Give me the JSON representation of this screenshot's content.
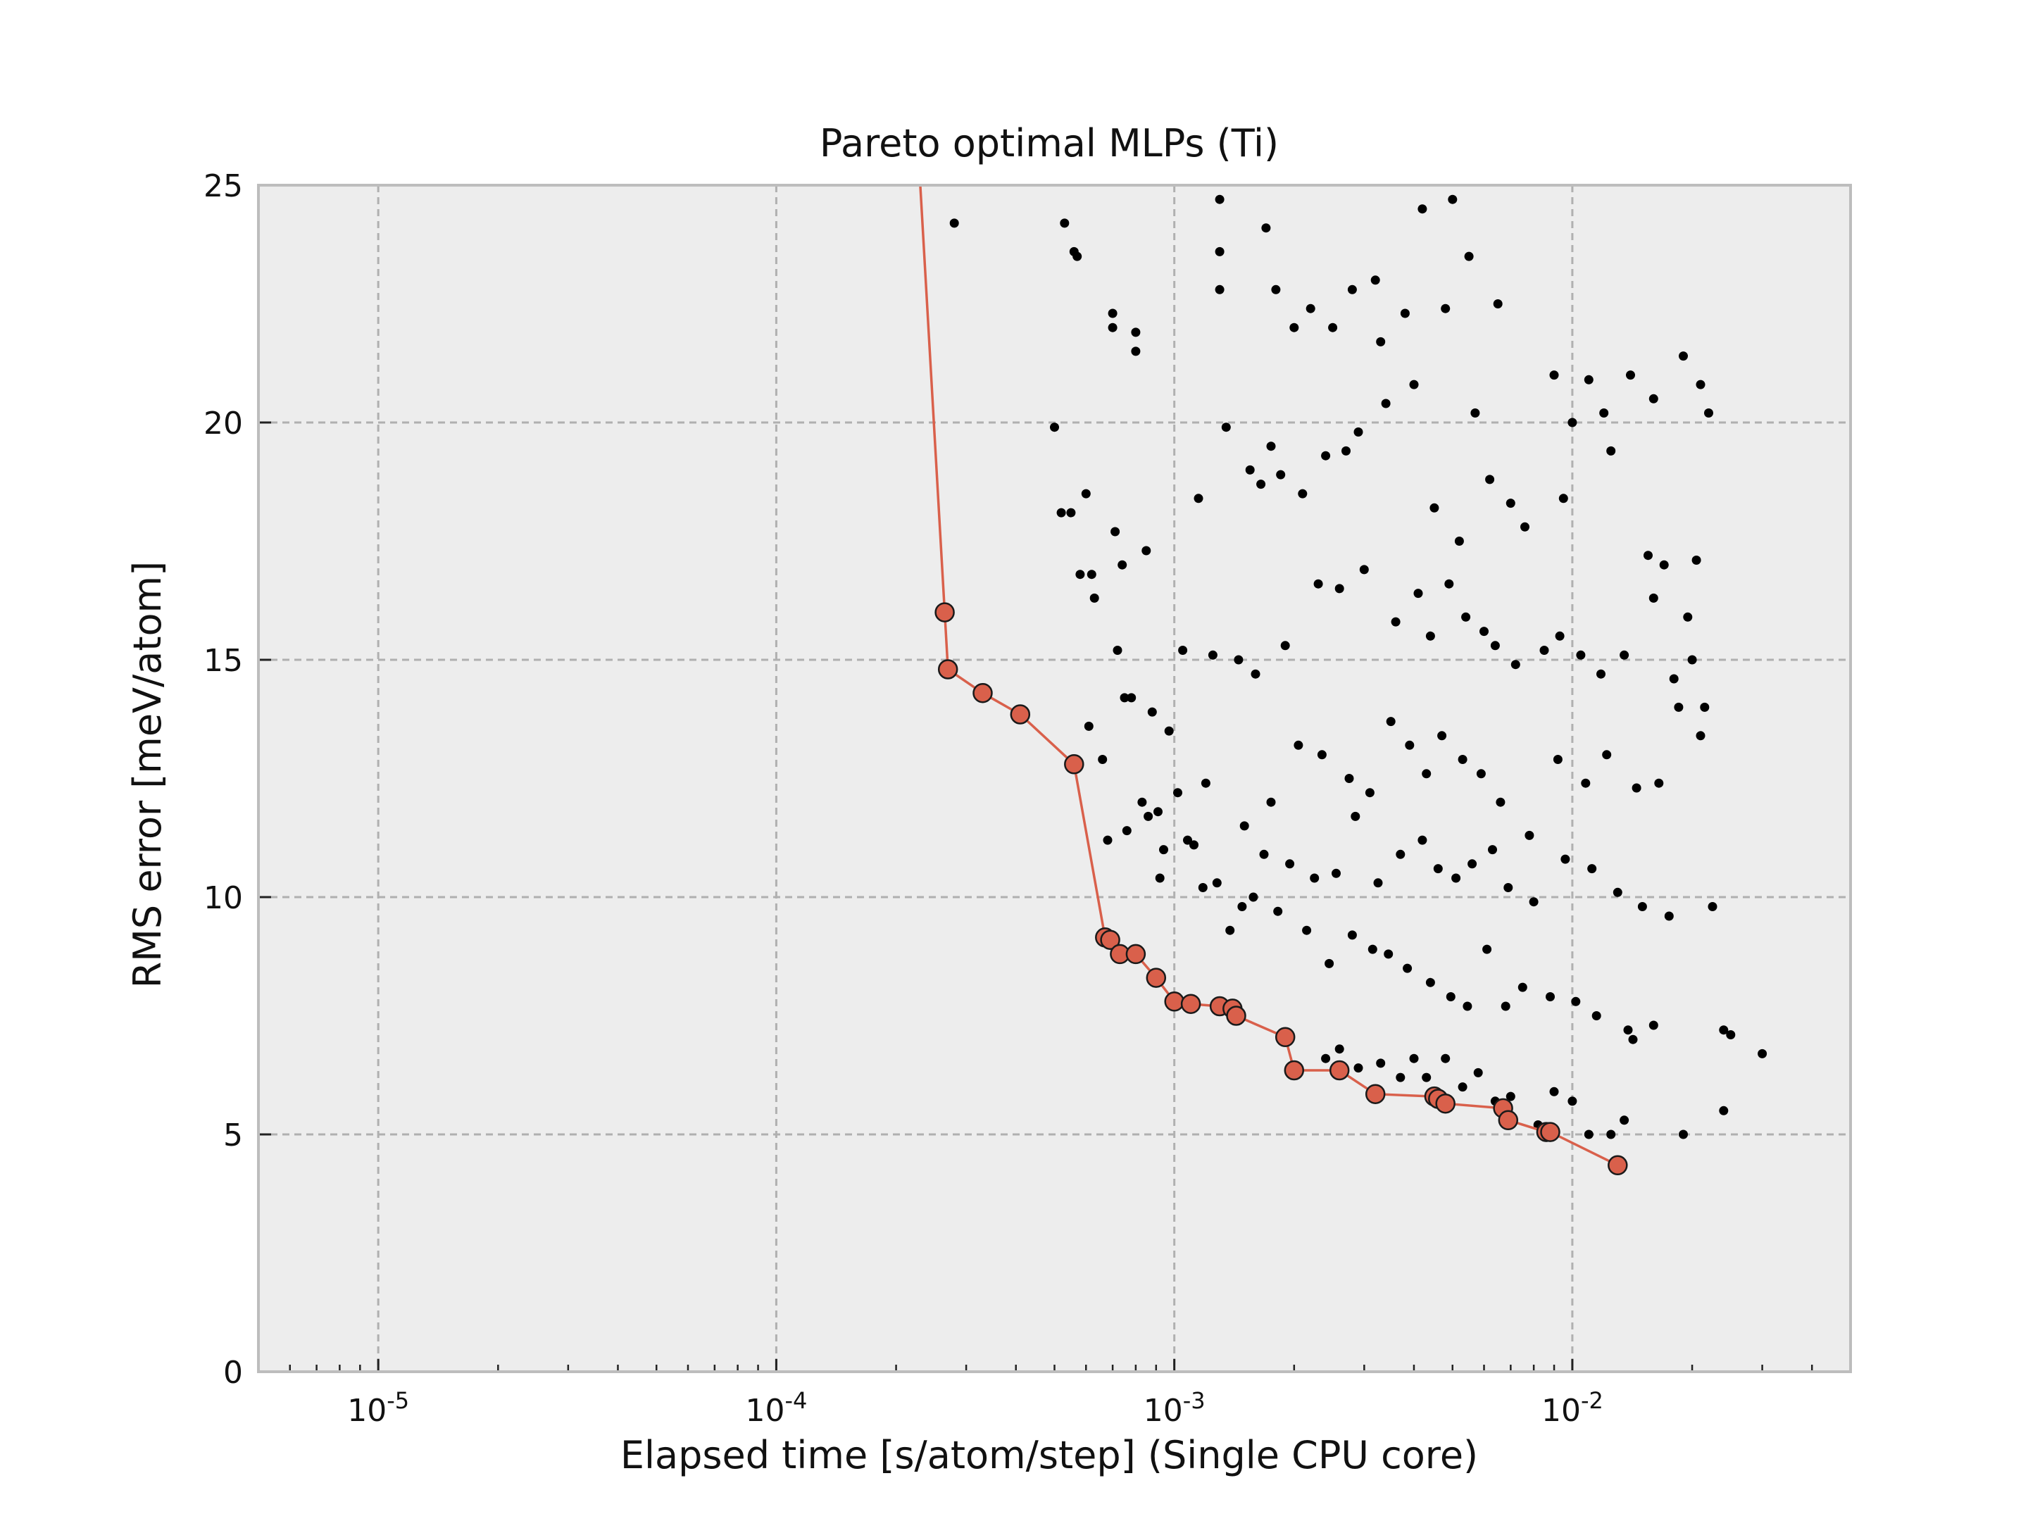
{
  "chart_data": {
    "type": "scatter",
    "title": "Pareto optimal MLPs (Ti)",
    "xlabel": "Elapsed time [s/atom/step] (Single CPU core)",
    "ylabel": "RMS error [meV/atom]",
    "xscale": "log",
    "xlim": [
      5e-06,
      0.05
    ],
    "ylim": [
      0,
      25
    ],
    "xticks": [
      1e-05,
      0.0001,
      0.001,
      0.01
    ],
    "xtick_labels": [
      {
        "base": "10",
        "exp": "-5"
      },
      {
        "base": "10",
        "exp": "-4"
      },
      {
        "base": "10",
        "exp": "-3"
      },
      {
        "base": "10",
        "exp": "-2"
      }
    ],
    "yticks": [
      0,
      5,
      10,
      15,
      20,
      25
    ],
    "ytick_labels": [
      "0",
      "5",
      "10",
      "15",
      "20",
      "25"
    ],
    "grid": true,
    "colors": {
      "background": "#ededed",
      "frame": "#bdbdbd",
      "grid": "#b0b0b0",
      "pareto": "#d9604b",
      "points": "#000000"
    },
    "pareto_front": {
      "x": [
        0.00023,
        0.000265,
        0.00027,
        0.00033,
        0.00041,
        0.00056,
        0.00067,
        0.00069,
        0.00073,
        0.0008,
        0.0009,
        0.001,
        0.0011,
        0.0013,
        0.0014,
        0.00143,
        0.0019,
        0.002,
        0.0026,
        0.0032,
        0.0045,
        0.0046,
        0.0048,
        0.0067,
        0.0069,
        0.0086,
        0.0088,
        0.013
      ],
      "y": [
        25.0,
        16.0,
        14.8,
        14.3,
        13.85,
        12.8,
        9.15,
        9.1,
        8.8,
        8.8,
        8.3,
        7.8,
        7.75,
        7.7,
        7.65,
        7.5,
        7.05,
        6.35,
        6.35,
        5.85,
        5.8,
        5.75,
        5.65,
        5.55,
        5.3,
        5.05,
        5.05,
        4.35
      ]
    },
    "all_models": {
      "x": [
        0.00028,
        0.00053,
        0.00056,
        0.00057,
        0.0007,
        0.0007,
        0.0008,
        0.0008,
        0.0013,
        0.0013,
        0.0013,
        0.0017,
        0.0018,
        0.002,
        0.0022,
        0.0025,
        0.0028,
        0.0032,
        0.0033,
        0.0038,
        0.0042,
        0.0048,
        0.005,
        0.0055,
        0.0065,
        0.009,
        0.011,
        0.012,
        0.014,
        0.016,
        0.019,
        0.021,
        0.022,
        0.0005,
        0.00052,
        0.00055,
        0.0006,
        0.00062,
        0.00071,
        0.00074,
        0.00085,
        0.00105,
        0.00115,
        0.00135,
        0.00155,
        0.00165,
        0.00175,
        0.00185,
        0.0021,
        0.0024,
        0.0027,
        0.0029,
        0.0034,
        0.004,
        0.0045,
        0.0052,
        0.0057,
        0.0062,
        0.007,
        0.0076,
        0.0095,
        0.01,
        0.0125,
        0.0155,
        0.017,
        0.0195,
        0.0205,
        0.00058,
        0.00063,
        0.00072,
        0.00078,
        0.00088,
        0.00097,
        0.00125,
        0.00145,
        0.0016,
        0.0019,
        0.0023,
        0.0026,
        0.003,
        0.0036,
        0.0041,
        0.0044,
        0.0049,
        0.0054,
        0.006,
        0.0064,
        0.0072,
        0.0085,
        0.0093,
        0.0105,
        0.0118,
        0.0135,
        0.016,
        0.018,
        0.02,
        0.0215,
        0.00061,
        0.00066,
        0.00075,
        0.00083,
        0.00091,
        0.00102,
        0.0012,
        0.0015,
        0.00175,
        0.00205,
        0.00235,
        0.00275,
        0.0031,
        0.0035,
        0.0039,
        0.0043,
        0.0047,
        0.0053,
        0.0059,
        0.0066,
        0.0078,
        0.0092,
        0.0108,
        0.0122,
        0.0145,
        0.0165,
        0.0185,
        0.021,
        0.00068,
        0.00076,
        0.00086,
        0.00094,
        0.00112,
        0.00128,
        0.00148,
        0.00168,
        0.00195,
        0.00225,
        0.00255,
        0.00285,
        0.00325,
        0.0037,
        0.0042,
        0.0046,
        0.0051,
        0.0056,
        0.0063,
        0.0069,
        0.008,
        0.0096,
        0.0112,
        0.013,
        0.015,
        0.0175,
        0.0225,
        0.00092,
        0.00108,
        0.00118,
        0.00138,
        0.00158,
        0.00182,
        0.00215,
        0.00245,
        0.0028,
        0.00315,
        0.00345,
        0.00385,
        0.0044,
        0.00495,
        0.00545,
        0.0061,
        0.0068,
        0.0075,
        0.0088,
        0.0102,
        0.0115,
        0.0138,
        0.0142,
        0.016,
        0.024,
        0.025,
        0.03,
        0.0024,
        0.0026,
        0.0029,
        0.0033,
        0.0037,
        0.004,
        0.0043,
        0.0048,
        0.0053,
        0.0058,
        0.0064,
        0.007,
        0.0082,
        0.009,
        0.01,
        0.011,
        0.0125,
        0.0135,
        0.019,
        0.024
      ],
      "y": [
        24.2,
        24.2,
        23.6,
        23.5,
        22.3,
        22.0,
        21.9,
        21.5,
        24.7,
        22.8,
        23.6,
        24.1,
        22.8,
        22.0,
        22.4,
        22.0,
        22.8,
        23.0,
        21.7,
        22.3,
        24.5,
        22.4,
        24.7,
        23.5,
        22.5,
        21.0,
        20.9,
        20.2,
        21.0,
        20.5,
        21.4,
        20.8,
        20.2,
        19.9,
        18.1,
        18.1,
        18.5,
        16.8,
        17.7,
        17.0,
        17.3,
        15.2,
        18.4,
        19.9,
        19.0,
        18.7,
        19.5,
        18.9,
        18.5,
        19.3,
        19.4,
        19.8,
        20.4,
        20.8,
        18.2,
        17.5,
        20.2,
        18.8,
        18.3,
        17.8,
        18.4,
        20.0,
        19.4,
        17.2,
        17.0,
        15.9,
        17.1,
        16.8,
        16.3,
        15.2,
        14.2,
        13.9,
        13.5,
        15.1,
        15.0,
        14.7,
        15.3,
        16.6,
        16.5,
        16.9,
        15.8,
        16.4,
        15.5,
        16.6,
        15.9,
        15.6,
        15.3,
        14.9,
        15.2,
        15.5,
        15.1,
        14.7,
        15.1,
        16.3,
        14.6,
        15.0,
        14.0,
        13.6,
        12.9,
        14.2,
        12.0,
        11.8,
        12.2,
        12.4,
        11.5,
        12.0,
        13.2,
        13.0,
        12.5,
        12.2,
        13.7,
        13.2,
        12.6,
        13.4,
        12.9,
        12.6,
        12.0,
        11.3,
        12.9,
        12.4,
        13.0,
        12.3,
        12.4,
        14.0,
        13.4,
        11.2,
        11.4,
        11.7,
        11.0,
        11.1,
        10.3,
        9.8,
        10.9,
        10.7,
        10.4,
        10.5,
        11.7,
        10.3,
        10.9,
        11.2,
        10.6,
        10.4,
        10.7,
        11.0,
        10.2,
        9.9,
        10.8,
        10.6,
        10.1,
        9.8,
        9.6,
        9.8,
        10.4,
        11.2,
        10.2,
        9.3,
        10.0,
        9.7,
        9.3,
        8.6,
        9.2,
        8.9,
        8.8,
        8.5,
        8.2,
        7.9,
        7.7,
        8.9,
        7.7,
        8.1,
        7.9,
        7.8,
        7.5,
        7.2,
        7.0,
        7.3,
        7.2,
        7.1,
        6.7,
        6.6,
        6.8,
        6.4,
        6.5,
        6.2,
        6.6,
        6.2,
        6.6,
        6.0,
        6.3,
        5.7,
        5.8,
        5.2,
        5.9,
        5.7,
        5.0,
        5.0,
        5.3,
        5.0,
        5.5
      ]
    }
  }
}
